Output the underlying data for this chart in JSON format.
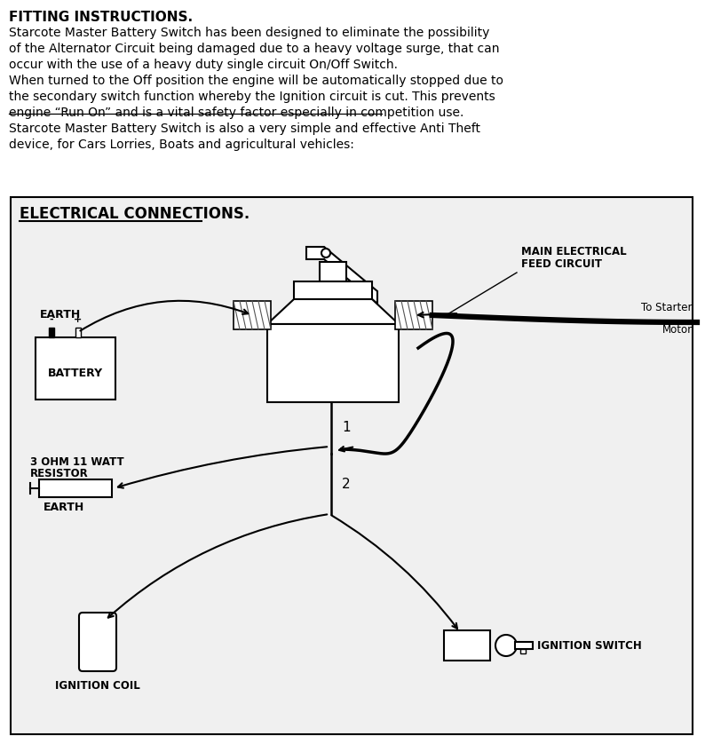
{
  "bg_color": "#ffffff",
  "text_color": "#000000",
  "title_line1": "FITTING INSTRUCTIONS.",
  "body_text": [
    "Starcote Master Battery Switch has been designed to eliminate the possibility",
    "of the Alternator Circuit being damaged due to a heavy voltage surge, that can",
    "occur with the use of a heavy duty single circuit On/Off Switch.",
    "When turned to the Off position the engine will be automatically stopped due to",
    "the secondary switch function whereby the Ignition circuit is cut. This prevents",
    "engine “Run On” and is a vital safety factor especially in competition use.",
    "Starcote Master Battery Switch is also a very simple and effective Anti Theft",
    "device, for Cars Lorries, Boats and agricultural vehicles:"
  ],
  "strikethrough_line_idx": 5,
  "diagram_title": "ELECTRICAL CONNECTIONS.",
  "figsize": [
    7.94,
    8.38
  ],
  "dpi": 100
}
